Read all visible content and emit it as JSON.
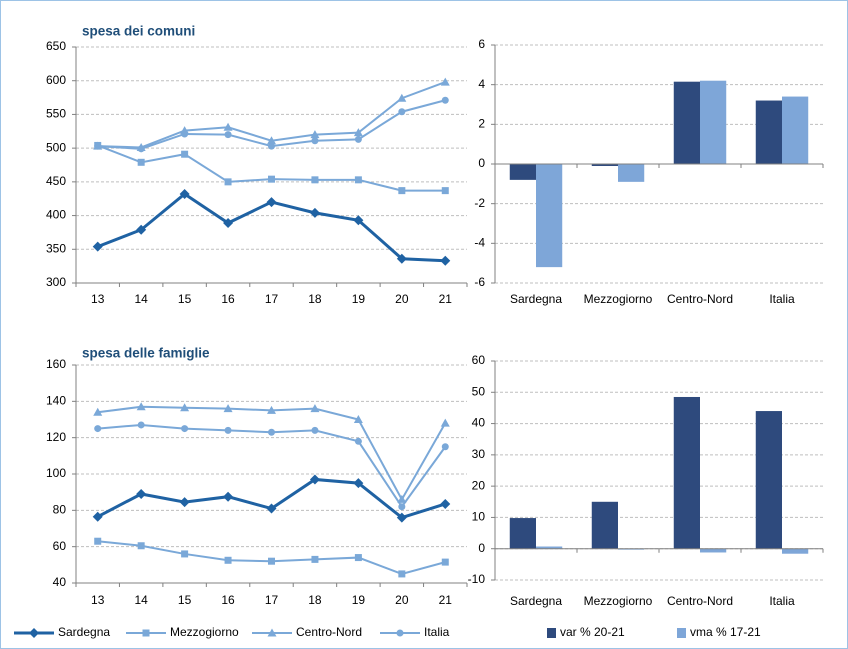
{
  "chart_data": [
    {
      "type": "line",
      "title": "spesa dei comuni",
      "categories": [
        "13",
        "14",
        "15",
        "16",
        "17",
        "18",
        "19",
        "20",
        "21"
      ],
      "ylim": [
        300,
        650
      ],
      "yticks": [
        300,
        350,
        400,
        450,
        500,
        550,
        600,
        650
      ],
      "grid": true,
      "series": [
        {
          "name": "Sardegna",
          "color": "#1f62a3",
          "marker": "diamond",
          "values": [
            354,
            379,
            432,
            389,
            420,
            404,
            393,
            336,
            333
          ]
        },
        {
          "name": "Mezzogiorno",
          "color": "#7aa8d8",
          "marker": "square",
          "values": [
            504,
            479,
            491,
            450,
            454,
            453,
            453,
            437,
            437
          ]
        },
        {
          "name": "Centro-Nord",
          "color": "#7aa8d8",
          "marker": "triangle",
          "values": [
            503,
            501,
            526,
            531,
            511,
            520,
            523,
            574,
            598
          ]
        },
        {
          "name": "Italia",
          "color": "#7aa8d8",
          "marker": "circle",
          "values": [
            503,
            499,
            521,
            520,
            503,
            511,
            513,
            554,
            571
          ]
        }
      ]
    },
    {
      "type": "bar",
      "categories": [
        "Sardegna",
        "Mezzogiorno",
        "Centro-Nord",
        "Italia"
      ],
      "ylim": [
        -6,
        6
      ],
      "yticks": [
        -6,
        -4,
        -2,
        0,
        2,
        4,
        6
      ],
      "grid": true,
      "series": [
        {
          "name": "var % 20-21",
          "color": "#2e4a7d",
          "values": [
            -0.8,
            -0.1,
            4.15,
            3.2
          ]
        },
        {
          "name": "vma % 17-21",
          "color": "#7ea6d8",
          "values": [
            -5.2,
            -0.9,
            4.2,
            3.4
          ]
        }
      ]
    },
    {
      "type": "line",
      "title": "spesa delle famiglie",
      "categories": [
        "13",
        "14",
        "15",
        "16",
        "17",
        "18",
        "19",
        "20",
        "21"
      ],
      "ylim": [
        40,
        160
      ],
      "yticks": [
        40,
        60,
        80,
        100,
        120,
        140,
        160
      ],
      "grid": true,
      "series": [
        {
          "name": "Sardegna",
          "color": "#1f62a3",
          "marker": "diamond",
          "values": [
            76.5,
            89,
            84.5,
            87.5,
            81,
            97,
            95,
            76,
            83.5
          ]
        },
        {
          "name": "Mezzogiorno",
          "color": "#7aa8d8",
          "marker": "square",
          "values": [
            63,
            60.5,
            56,
            52.5,
            52,
            53,
            54,
            45,
            51.5
          ]
        },
        {
          "name": "Centro-Nord",
          "color": "#7aa8d8",
          "marker": "triangle",
          "values": [
            134,
            137,
            136.5,
            136,
            135,
            136,
            130,
            86,
            128
          ]
        },
        {
          "name": "Italia",
          "color": "#7aa8d8",
          "marker": "circle",
          "values": [
            125,
            127,
            125,
            124,
            123,
            124,
            118,
            82,
            115
          ]
        }
      ]
    },
    {
      "type": "bar",
      "categories": [
        "Sardegna",
        "Mezzogiorno",
        "Centro-Nord",
        "Italia"
      ],
      "ylim": [
        -10,
        60
      ],
      "yticks": [
        -10,
        0,
        10,
        20,
        30,
        40,
        50,
        60
      ],
      "grid": true,
      "series": [
        {
          "name": "var % 20-21",
          "color": "#2e4a7d",
          "values": [
            9.8,
            15,
            48.5,
            44
          ]
        },
        {
          "name": "vma % 17-21",
          "color": "#7ea6d8",
          "values": [
            0.7,
            -0.3,
            -1.2,
            -1.6
          ]
        }
      ]
    }
  ]
}
